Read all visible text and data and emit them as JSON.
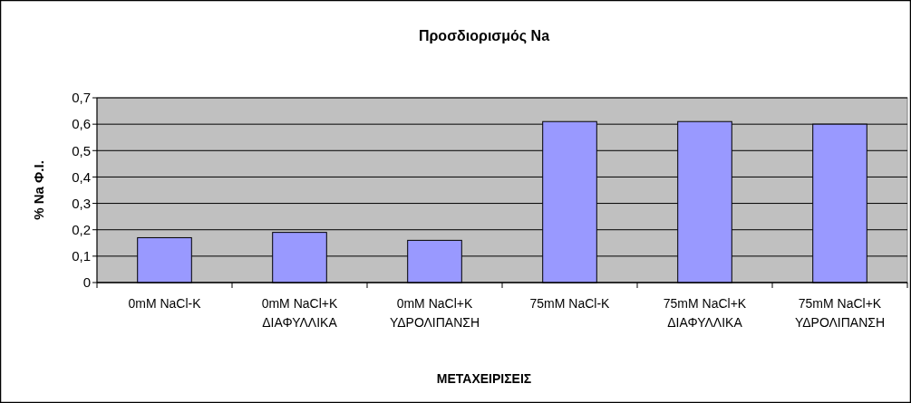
{
  "chart_data": {
    "type": "bar",
    "title": "Προσδιορισμός Na",
    "xlabel": "ΜΕΤΑΧΕΙΡΙΣΕΙΣ",
    "ylabel": "% Na Φ.Ι.",
    "categories": [
      "0mM NaCl-K",
      "0mM NaCl+K\nΔΙΑΦΥΛΛΙΚΑ",
      "0mM NaCl+K\nΥΔΡΟΛΙΠΑΝΣΗ",
      "75mM NaCl-K",
      "75mM NaCl+K\nΔΙΑΦΥΛΛΙΚΑ",
      "75mM NaCl+K\nΥΔΡΟΛΙΠΑΝΣΗ"
    ],
    "values": [
      0.17,
      0.19,
      0.16,
      0.61,
      0.61,
      0.6
    ],
    "color": "#9999ff",
    "ylim": [
      0,
      0.7
    ],
    "yticks": [
      {
        "value": 0,
        "label": "0"
      },
      {
        "value": 0.1,
        "label": "0,1"
      },
      {
        "value": 0.2,
        "label": "0,2"
      },
      {
        "value": 0.3,
        "label": "0,3"
      },
      {
        "value": 0.4,
        "label": "0,4"
      },
      {
        "value": 0.5,
        "label": "0,5"
      },
      {
        "value": 0.6,
        "label": "0,6"
      },
      {
        "value": 0.7,
        "label": "0,7"
      }
    ],
    "grid": "y"
  }
}
